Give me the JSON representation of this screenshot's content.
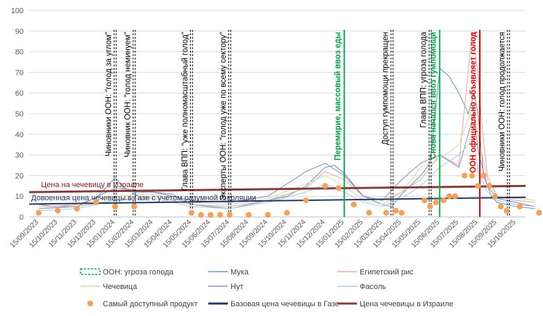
{
  "chart_data": {
    "type": "line",
    "ylim": [
      0,
      100
    ],
    "yticks": [
      0,
      10,
      20,
      30,
      40,
      50,
      60,
      70,
      80,
      90,
      100
    ],
    "x_categories": [
      "15/09/2023",
      "15/10/2023",
      "15/11/2023",
      "15/12/2023",
      "15/01/2024",
      "15/02/2024",
      "15/03/2024",
      "15/04/2024",
      "15/05/2024",
      "15/06/2024",
      "15/07/2024",
      "15/08/2024",
      "15/09/2024",
      "15/10/2024",
      "15/11/2024",
      "15/12/2024",
      "15/01/2025",
      "15/02/2025",
      "15/03/2025",
      "15/04/2025",
      "15/05/2025",
      "15/06/2025",
      "15/07/2025",
      "15/08/2025",
      "15/09/2025",
      "15/10/2025"
    ],
    "grid": true,
    "legend_position": "bottom",
    "colors": {
      "flour": "#6f9bb5",
      "rice": "#e8aaaa",
      "lentils": "#cfdcaa",
      "chickpeas": "#9a8bc4",
      "beans": "#a9cfe0",
      "cheapest": "#f5a15a",
      "gaza_base": "#1f3864",
      "israel": "#843c39",
      "famine_threat": "#00b050",
      "famine_declared": "#e00000",
      "event": "#000000"
    },
    "reference_lines": [
      {
        "key": "gaza_base",
        "label": "Довоенная цена чечевицы в Газе с учетом разумной инфляции",
        "start": 6.2,
        "end": 9.5
      },
      {
        "key": "israel",
        "label": "Цена  на чечевицу  в Израиле",
        "start": 12,
        "end": 15
      }
    ],
    "events": [
      {
        "x": 4.0,
        "style": "event",
        "label": "Чиновники  ООН: \"голод за углом\""
      },
      {
        "x": 5.0,
        "style": "event",
        "label": "Чиновник  ООН: \"голод неминуем\""
      },
      {
        "x": 8.0,
        "style": "event",
        "label": "Глава ВПП: \"уже полномасштабный голод\""
      },
      {
        "x": 10.0,
        "style": "event",
        "label": "Эксперты ООН: \"голод уже по всему сектору\""
      },
      {
        "x": 16.0,
        "style": "famine_threat",
        "label": "Перемирие,  массовый ввоз  еды"
      },
      {
        "x": 18.5,
        "style": "event",
        "label": "Доступ гумпомощи прекращен"
      },
      {
        "x": 20.5,
        "style": "event",
        "label": "Глава ВПП: угроза голода"
      },
      {
        "x": 21.0,
        "style": "famine_threat",
        "label": "Снова начался ввоз гумпомощи"
      },
      {
        "x": 23.1,
        "style": "famine_declared",
        "label": "ООН официально объявляет голод"
      },
      {
        "x": 24.6,
        "style": "event",
        "label": "Чиновники  ООН: голод продолжается"
      }
    ],
    "series": [
      {
        "key": "flour",
        "name": "Мука",
        "points": [
          [
            0,
            6
          ],
          [
            1,
            5
          ],
          [
            2,
            6
          ],
          [
            3,
            9
          ],
          [
            4,
            19
          ],
          [
            4.5,
            14
          ],
          [
            5,
            12
          ],
          [
            6,
            12
          ],
          [
            7,
            11
          ],
          [
            8,
            6
          ],
          [
            9,
            5
          ],
          [
            10,
            4
          ],
          [
            11,
            6
          ],
          [
            12,
            8
          ],
          [
            13,
            10
          ],
          [
            14,
            15
          ],
          [
            15,
            24
          ],
          [
            15.5,
            25
          ],
          [
            16,
            21
          ],
          [
            17,
            10
          ],
          [
            18,
            6
          ],
          [
            18.5,
            5
          ],
          [
            19,
            11
          ],
          [
            20,
            20
          ],
          [
            20.5,
            26
          ],
          [
            21,
            72
          ],
          [
            21.5,
            68
          ],
          [
            22,
            60
          ],
          [
            22.5,
            50
          ],
          [
            22.8,
            60
          ],
          [
            23,
            50
          ],
          [
            23.3,
            20
          ],
          [
            23.7,
            10
          ],
          [
            24,
            7
          ],
          [
            24.5,
            6
          ],
          [
            25,
            5
          ],
          [
            26,
            4
          ]
        ]
      },
      {
        "key": "rice",
        "name": "Египетский рис",
        "points": [
          [
            0,
            5
          ],
          [
            2,
            5
          ],
          [
            4,
            8
          ],
          [
            6,
            10
          ],
          [
            8,
            6
          ],
          [
            10,
            5
          ],
          [
            12,
            8
          ],
          [
            14,
            14
          ],
          [
            15,
            22
          ],
          [
            16,
            18
          ],
          [
            17,
            10
          ],
          [
            18,
            8
          ],
          [
            19,
            12
          ],
          [
            20,
            18
          ],
          [
            21,
            30
          ],
          [
            22,
            25
          ],
          [
            22.7,
            90
          ],
          [
            23,
            70
          ],
          [
            23.2,
            45
          ],
          [
            23.5,
            20
          ],
          [
            24,
            10
          ],
          [
            25,
            8
          ],
          [
            26,
            7
          ]
        ]
      },
      {
        "key": "lentils",
        "name": "Чечевица",
        "points": [
          [
            0,
            5
          ],
          [
            2,
            6
          ],
          [
            4,
            10
          ],
          [
            6,
            11
          ],
          [
            8,
            7
          ],
          [
            10,
            6
          ],
          [
            12,
            9
          ],
          [
            14,
            16
          ],
          [
            15,
            20
          ],
          [
            16,
            15
          ],
          [
            17,
            8
          ],
          [
            18,
            6
          ],
          [
            19,
            12
          ],
          [
            20,
            24
          ],
          [
            21,
            28
          ],
          [
            22,
            35
          ],
          [
            22.8,
            55
          ],
          [
            23,
            40
          ],
          [
            23.5,
            18
          ],
          [
            24,
            10
          ],
          [
            25,
            9
          ],
          [
            26,
            8
          ]
        ]
      },
      {
        "key": "chickpeas",
        "name": "Нут",
        "points": [
          [
            0,
            4
          ],
          [
            2,
            5
          ],
          [
            4,
            14
          ],
          [
            5,
            13
          ],
          [
            6,
            12
          ],
          [
            8,
            8
          ],
          [
            10,
            7
          ],
          [
            12,
            10
          ],
          [
            14,
            22
          ],
          [
            15,
            26
          ],
          [
            16,
            20
          ],
          [
            17,
            10
          ],
          [
            18,
            8
          ],
          [
            19,
            18
          ],
          [
            20,
            26
          ],
          [
            21,
            30
          ],
          [
            22,
            24
          ],
          [
            22.8,
            50
          ],
          [
            23,
            32
          ],
          [
            23.5,
            15
          ],
          [
            24,
            9
          ],
          [
            25,
            7
          ],
          [
            26,
            5
          ]
        ]
      },
      {
        "key": "beans",
        "name": "Фасоль",
        "points": [
          [
            0,
            3
          ],
          [
            2,
            4
          ],
          [
            4,
            8
          ],
          [
            6,
            9
          ],
          [
            8,
            5
          ],
          [
            10,
            4
          ],
          [
            12,
            7
          ],
          [
            14,
            12
          ],
          [
            15,
            16
          ],
          [
            16,
            12
          ],
          [
            17,
            7
          ],
          [
            18,
            5
          ],
          [
            19,
            9
          ],
          [
            20,
            15
          ],
          [
            21,
            24
          ],
          [
            22,
            30
          ],
          [
            22.8,
            38
          ],
          [
            23,
            22
          ],
          [
            23.5,
            12
          ],
          [
            24,
            8
          ],
          [
            25,
            6
          ],
          [
            26,
            5
          ]
        ]
      }
    ],
    "cheapest_points": [
      [
        0,
        2
      ],
      [
        1,
        3
      ],
      [
        2,
        4
      ],
      [
        3,
        7
      ],
      [
        4,
        5
      ],
      [
        5,
        5
      ],
      [
        8,
        2
      ],
      [
        8.5,
        1
      ],
      [
        9,
        1
      ],
      [
        9.5,
        1
      ],
      [
        10,
        1
      ],
      [
        11,
        1
      ],
      [
        12,
        1
      ],
      [
        13,
        2
      ],
      [
        14,
        8
      ],
      [
        15,
        15
      ],
      [
        15.7,
        14
      ],
      [
        16.5,
        6
      ],
      [
        17.3,
        2
      ],
      [
        18.2,
        2
      ],
      [
        18.7,
        3
      ],
      [
        19,
        2
      ],
      [
        20.2,
        8
      ],
      [
        20.5,
        5
      ],
      [
        20.8,
        7
      ],
      [
        21.2,
        8
      ],
      [
        21.5,
        10
      ],
      [
        21.8,
        10
      ],
      [
        22.3,
        20
      ],
      [
        22.7,
        20
      ],
      [
        23.0,
        15
      ],
      [
        23.3,
        20
      ],
      [
        23.6,
        15
      ],
      [
        23.9,
        10
      ],
      [
        24.2,
        5
      ],
      [
        24.5,
        3
      ],
      [
        25.2,
        5
      ],
      [
        26.2,
        2
      ]
    ],
    "legend": [
      {
        "key": "famine_threat",
        "label": "ООН: угроза голода",
        "kind": "dashed-box"
      },
      {
        "key": "flour",
        "label": "Мука",
        "kind": "line"
      },
      {
        "key": "rice",
        "label": "Египетский рис",
        "kind": "line"
      },
      {
        "key": "lentils",
        "label": "Чечевица",
        "kind": "line"
      },
      {
        "key": "chickpeas",
        "label": "Нут",
        "kind": "line"
      },
      {
        "key": "beans",
        "label": "Фасоль",
        "kind": "line"
      },
      {
        "key": "cheapest",
        "label": "Самый доступный продукт",
        "kind": "dot"
      },
      {
        "key": "gaza_base",
        "label": "Базовая цена чечевицы в Газе",
        "kind": "thick-line"
      },
      {
        "key": "israel",
        "label": "Цена чечевицы в Израиле",
        "kind": "thick-line"
      }
    ]
  }
}
